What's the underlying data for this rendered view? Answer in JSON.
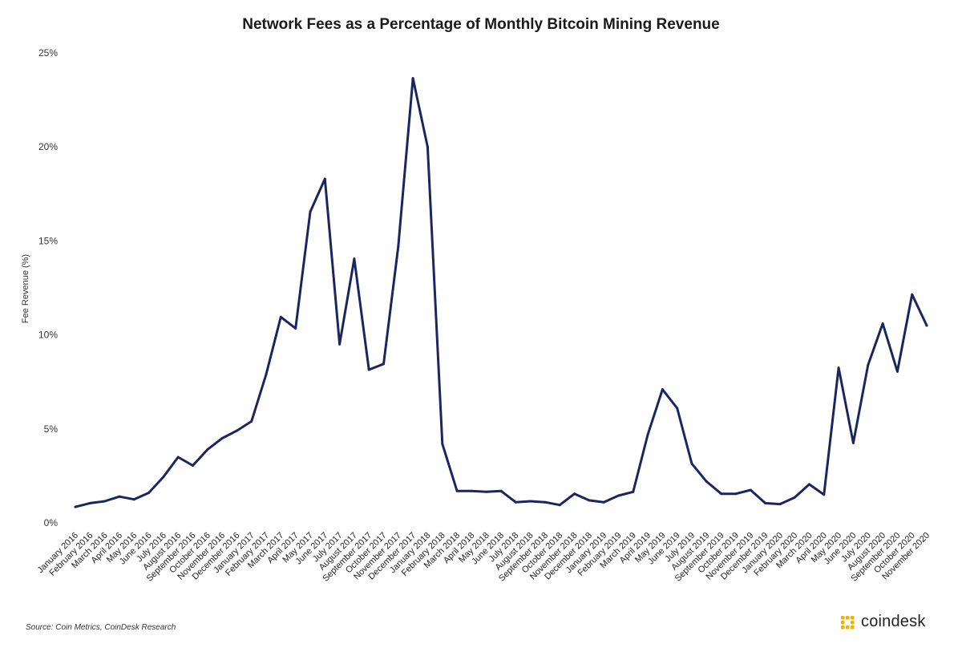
{
  "chart_data": {
    "type": "line",
    "title": "Network Fees as a Percentage of Monthly Bitcoin Mining Revenue",
    "xlabel": "",
    "ylabel": "Fee Revenue (%)",
    "ylim": [
      0,
      25
    ],
    "yticks": [
      "0%",
      "5%",
      "10%",
      "15%",
      "20%",
      "25%"
    ],
    "ytick_values": [
      0,
      5,
      10,
      15,
      20,
      25
    ],
    "grid": false,
    "line_color": "#1b2660",
    "categories": [
      "January 2016",
      "February 2016",
      "March 2016",
      "April 2016",
      "May 2016",
      "June 2016",
      "July 2016",
      "August 2016",
      "September 2016",
      "October 2016",
      "November 2016",
      "December 2016",
      "January 2017",
      "February 2017",
      "March 2017",
      "April 2017",
      "May 2017",
      "June 2017",
      "July 2017",
      "August 2017",
      "September 2017",
      "October 2017",
      "November 2017",
      "December 2017",
      "January 2018",
      "February 2018",
      "March 2018",
      "April 2018",
      "May 2018",
      "June 2018",
      "July 2018",
      "August 2018",
      "September 2018",
      "October 2018",
      "November 2018",
      "December 2018",
      "January 2019",
      "February 2019",
      "March 2019",
      "April 2019",
      "May 2019",
      "June 2019",
      "July 2019",
      "August 2019",
      "September 2019",
      "October 2019",
      "November 2019",
      "December 2019",
      "January 2020",
      "February 2020",
      "March 2020",
      "April 2020",
      "May 2020",
      "June 2020",
      "July 2020",
      "August 2020",
      "September 2020",
      "October 2020",
      "November 2020"
    ],
    "series": [
      {
        "values": [
          0.85,
          1.05,
          1.15,
          1.4,
          1.25,
          1.6,
          2.45,
          3.5,
          3.05,
          3.9,
          4.5,
          4.9,
          5.4,
          7.9,
          10.95,
          10.35,
          16.55,
          18.3,
          9.5,
          14.05,
          8.15,
          8.45,
          14.7,
          23.65,
          20.0,
          4.2,
          1.7,
          1.7,
          1.65,
          1.7,
          1.1,
          1.15,
          1.1,
          0.95,
          1.55,
          1.2,
          1.1,
          1.45,
          1.65,
          4.7,
          7.1,
          6.1,
          3.15,
          2.2,
          1.55,
          1.55,
          1.75,
          1.05,
          1.0,
          1.35,
          2.05,
          1.5,
          8.25,
          4.25,
          8.4,
          10.6,
          8.05,
          12.15,
          10.5
        ]
      }
    ]
  },
  "source_note": "Source: Coin Metrics, CoinDesk Research",
  "brand": {
    "name": "coindesk",
    "logo_icon": "coindesk-logo-icon",
    "logo_color": "#f2b200"
  }
}
